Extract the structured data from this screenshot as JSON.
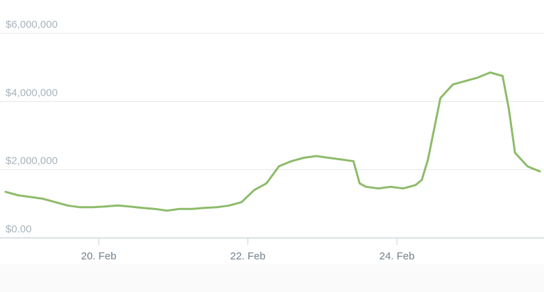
{
  "chart_data": {
    "type": "line",
    "title": "",
    "xlabel": "",
    "ylabel": "",
    "ylim": [
      0,
      6000000
    ],
    "xlim": [
      "2024-02-18T18:00",
      "2024-02-25T22:00"
    ],
    "yticks": [
      0,
      2000000,
      4000000,
      6000000
    ],
    "ytick_labels": [
      "$0.00",
      "$2,000,000",
      "$4,000,000",
      "$6,000,000"
    ],
    "xticks": [
      "2024-02-20T00:00",
      "2024-02-22T00:00",
      "2024-02-24T00:00"
    ],
    "xtick_labels": [
      "20. Feb",
      "22. Feb",
      "24. Feb"
    ],
    "grid": true,
    "legend": "none",
    "color": "#8dbb6a",
    "series": [
      {
        "x": [
          "2024-02-18T18:00",
          "2024-02-18T22:00",
          "2024-02-19T02:00",
          "2024-02-19T06:00",
          "2024-02-19T10:00",
          "2024-02-19T14:00",
          "2024-02-19T18:00",
          "2024-02-19T22:00",
          "2024-02-20T02:00",
          "2024-02-20T06:00",
          "2024-02-20T10:00",
          "2024-02-20T14:00",
          "2024-02-20T18:00",
          "2024-02-20T22:00",
          "2024-02-21T02:00",
          "2024-02-21T06:00",
          "2024-02-21T10:00",
          "2024-02-21T14:00",
          "2024-02-21T18:00",
          "2024-02-21T22:00",
          "2024-02-22T02:00",
          "2024-02-22T06:00",
          "2024-02-22T10:00",
          "2024-02-22T14:00",
          "2024-02-22T18:00",
          "2024-02-22T22:00",
          "2024-02-23T02:00",
          "2024-02-23T06:00",
          "2024-02-23T10:00",
          "2024-02-23T12:00",
          "2024-02-23T14:00",
          "2024-02-23T18:00",
          "2024-02-23T22:00",
          "2024-02-24T02:00",
          "2024-02-24T06:00",
          "2024-02-24T08:00",
          "2024-02-24T10:00",
          "2024-02-24T14:00",
          "2024-02-24T18:00",
          "2024-02-24T22:00",
          "2024-02-25T02:00",
          "2024-02-25T06:00",
          "2024-02-25T08:00",
          "2024-02-25T10:00",
          "2024-02-25T12:00",
          "2024-02-25T14:00",
          "2024-02-25T18:00",
          "2024-02-25T22:00"
        ],
        "values": [
          1350000,
          1250000,
          1200000,
          1150000,
          1050000,
          950000,
          900000,
          900000,
          920000,
          950000,
          920000,
          880000,
          850000,
          800000,
          850000,
          850000,
          880000,
          900000,
          950000,
          1050000,
          1400000,
          1600000,
          2100000,
          2250000,
          2350000,
          2400000,
          2350000,
          2300000,
          2250000,
          1600000,
          1500000,
          1450000,
          1500000,
          1450000,
          1550000,
          1700000,
          2300000,
          4100000,
          4500000,
          4600000,
          4700000,
          4850000,
          4800000,
          4750000,
          3800000,
          2500000,
          2100000,
          1950000
        ]
      }
    ]
  }
}
